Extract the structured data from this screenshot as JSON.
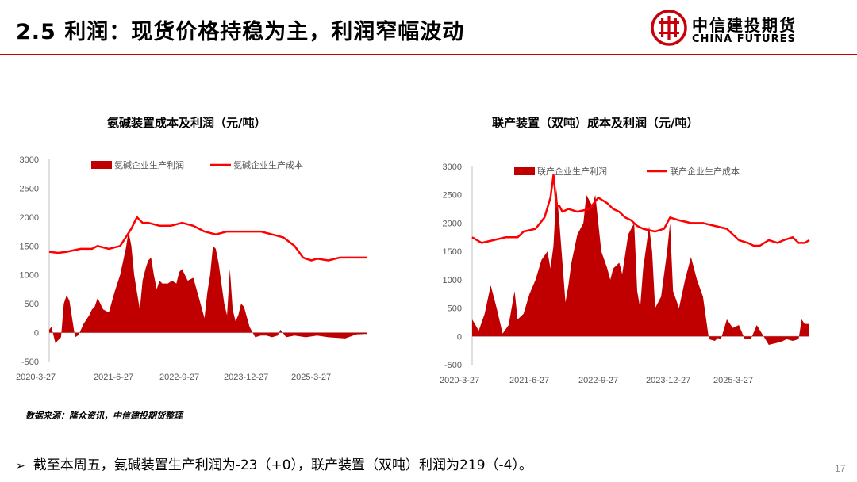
{
  "header": {
    "title": "2.5 利润：现货价格持稳为主，利润窄幅波动",
    "logo_cn": "中信建投期货",
    "logo_en": "CHINA FUTURES",
    "accent_color": "#c8000a"
  },
  "chart_data": [
    {
      "type": "area+line",
      "title": "氨碱装置成本及利润（元/吨）",
      "xlabel": "",
      "ylabel": "",
      "ylim": [
        -500,
        3000
      ],
      "yticks": [
        -500,
        0,
        500,
        1000,
        1500,
        2000,
        2500,
        3000
      ],
      "xticks": [
        "2020-3-27",
        "2021-6-27",
        "2022-9-27",
        "2023-12-27",
        "2025-3-27"
      ],
      "xrange": [
        2020.24,
        2025.88
      ],
      "grid": false,
      "legend_position": "top",
      "series": [
        {
          "name": "氨碱企业生产利润",
          "kind": "area",
          "color": "#c00000",
          "x": [
            2020.24,
            2020.28,
            2020.35,
            2020.45,
            2020.5,
            2020.55,
            2020.6,
            2020.7,
            2020.75,
            2020.78,
            2020.85,
            2020.95,
            2021.0,
            2021.05,
            2021.1,
            2021.2,
            2021.3,
            2021.4,
            2021.5,
            2021.6,
            2021.65,
            2021.7,
            2021.75,
            2021.8,
            2021.85,
            2021.9,
            2021.95,
            2022.0,
            2022.05,
            2022.1,
            2022.15,
            2022.2,
            2022.25,
            2022.35,
            2022.42,
            2022.5,
            2022.55,
            2022.6,
            2022.7,
            2022.8,
            2022.9,
            2023.0,
            2023.05,
            2023.1,
            2023.15,
            2023.2,
            2023.25,
            2023.35,
            2023.4,
            2023.45,
            2023.5,
            2023.55,
            2023.6,
            2023.65,
            2023.7,
            2023.8,
            2023.9,
            2024.0,
            2024.1,
            2024.2,
            2024.3,
            2024.35,
            2024.45,
            2024.6,
            2024.8,
            2025.0,
            2025.2,
            2025.5,
            2025.7,
            2025.85,
            2025.88
          ],
          "y": [
            50,
            100,
            -180,
            -80,
            500,
            650,
            550,
            -80,
            -50,
            0,
            150,
            300,
            400,
            450,
            600,
            400,
            350,
            700,
            1000,
            1450,
            1750,
            1500,
            1000,
            700,
            400,
            900,
            1100,
            1250,
            1300,
            1000,
            750,
            900,
            850,
            850,
            900,
            850,
            1050,
            1100,
            900,
            950,
            600,
            250,
            700,
            1000,
            1500,
            1450,
            1200,
            500,
            300,
            1100,
            400,
            200,
            300,
            500,
            450,
            100,
            -80,
            -50,
            -50,
            -80,
            -50,
            50,
            -80,
            -50,
            -80,
            -50,
            -80,
            -100,
            -30,
            -23,
            -23
          ]
        },
        {
          "name": "氨碱企业生产成本",
          "kind": "line",
          "color": "#ff0000",
          "x": [
            2020.24,
            2020.4,
            2020.55,
            2020.8,
            2021.0,
            2021.1,
            2021.3,
            2021.5,
            2021.6,
            2021.7,
            2021.8,
            2021.9,
            2022.0,
            2022.2,
            2022.4,
            2022.6,
            2022.8,
            2023.0,
            2023.2,
            2023.4,
            2023.6,
            2023.8,
            2024.0,
            2024.2,
            2024.4,
            2024.6,
            2024.75,
            2024.8,
            2024.9,
            2025.0,
            2025.2,
            2025.4,
            2025.6,
            2025.88
          ],
          "y": [
            1400,
            1380,
            1400,
            1450,
            1450,
            1500,
            1450,
            1500,
            1650,
            1800,
            2000,
            1900,
            1900,
            1850,
            1850,
            1900,
            1850,
            1750,
            1700,
            1750,
            1750,
            1750,
            1750,
            1700,
            1650,
            1500,
            1300,
            1280,
            1250,
            1280,
            1250,
            1300,
            1300,
            1300
          ]
        }
      ]
    },
    {
      "type": "area+line",
      "title": "联产装置（双吨）成本及利润（元/吨）",
      "xlabel": "",
      "ylabel": "",
      "ylim": [
        -500,
        3000
      ],
      "yticks": [
        -500,
        0,
        500,
        1000,
        1500,
        2000,
        2500,
        3000
      ],
      "xticks": [
        "2020-3-27",
        "2021-6-27",
        "2022-9-27",
        "2023-12-27",
        "2025-3-27"
      ],
      "xrange": [
        2020.24,
        2025.88
      ],
      "grid": false,
      "legend_position": "top",
      "series": [
        {
          "name": "联产企业生产利润",
          "kind": "area",
          "color": "#c00000",
          "x": [
            2020.24,
            2020.35,
            2020.45,
            2020.55,
            2020.65,
            2020.75,
            2020.85,
            2020.95,
            2021.0,
            2021.1,
            2021.2,
            2021.3,
            2021.4,
            2021.5,
            2021.55,
            2021.6,
            2021.65,
            2021.7,
            2021.75,
            2021.8,
            2021.85,
            2021.9,
            2022.0,
            2022.1,
            2022.15,
            2022.25,
            2022.3,
            2022.4,
            2022.5,
            2022.55,
            2022.6,
            2022.7,
            2022.75,
            2022.85,
            2022.95,
            2023.0,
            2023.05,
            2023.1,
            2023.2,
            2023.25,
            2023.3,
            2023.4,
            2023.5,
            2023.55,
            2023.6,
            2023.7,
            2023.8,
            2023.9,
            2024.0,
            2024.1,
            2024.2,
            2024.3,
            2024.35,
            2024.4,
            2024.5,
            2024.6,
            2024.7,
            2024.8,
            2024.9,
            2025.0,
            2025.2,
            2025.4,
            2025.5,
            2025.6,
            2025.7,
            2025.75,
            2025.8,
            2025.88
          ],
          "y": [
            300,
            100,
            400,
            900,
            500,
            50,
            200,
            800,
            300,
            400,
            750,
            1000,
            1350,
            1500,
            1200,
            1600,
            2600,
            2000,
            1300,
            600,
            900,
            1300,
            1800,
            2000,
            2500,
            2300,
            2500,
            1500,
            1200,
            1000,
            1200,
            1300,
            1100,
            1800,
            2000,
            800,
            500,
            1200,
            1950,
            1500,
            500,
            700,
            1500,
            2000,
            800,
            500,
            1000,
            1400,
            1000,
            700,
            -50,
            -80,
            -30,
            -50,
            300,
            150,
            200,
            -50,
            -50,
            200,
            -150,
            -100,
            -50,
            -80,
            -50,
            300,
            219,
            219
          ]
        },
        {
          "name": "联产企业生产成本",
          "kind": "line",
          "color": "#ff0000",
          "x": [
            2020.24,
            2020.4,
            2020.6,
            2020.8,
            2021.0,
            2021.1,
            2021.3,
            2021.45,
            2021.55,
            2021.6,
            2021.65,
            2021.7,
            2021.75,
            2021.85,
            2022.0,
            2022.2,
            2022.35,
            2022.5,
            2022.6,
            2022.7,
            2022.8,
            2022.9,
            2023.0,
            2023.1,
            2023.3,
            2023.45,
            2023.55,
            2023.7,
            2023.9,
            2024.1,
            2024.3,
            2024.5,
            2024.7,
            2024.85,
            2024.95,
            2025.05,
            2025.2,
            2025.35,
            2025.45,
            2025.6,
            2025.7,
            2025.8,
            2025.88
          ],
          "y": [
            1750,
            1650,
            1700,
            1750,
            1750,
            1850,
            1900,
            2100,
            2450,
            2850,
            2300,
            2300,
            2200,
            2250,
            2200,
            2250,
            2450,
            2350,
            2250,
            2200,
            2100,
            2050,
            1950,
            1900,
            1850,
            1900,
            2100,
            2050,
            2000,
            2000,
            1950,
            1900,
            1700,
            1650,
            1600,
            1600,
            1700,
            1650,
            1700,
            1750,
            1650,
            1650,
            1700
          ]
        }
      ]
    }
  ],
  "source": "数据来源：隆众资讯，中信建投期货整理",
  "summary": {
    "arrow": "➢",
    "text": "截至本周五，氨碱装置生产利润为-23（+0），联产装置（双吨）利润为219（-4）。"
  },
  "page_number": "17"
}
